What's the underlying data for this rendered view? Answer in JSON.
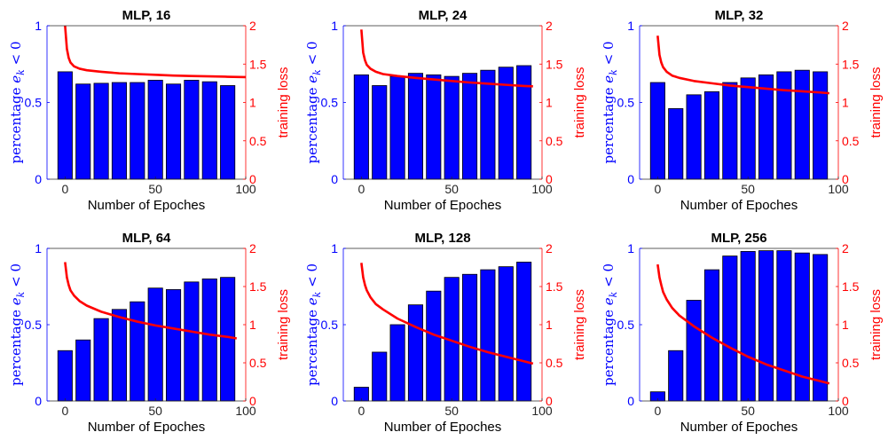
{
  "chart_data": [
    {
      "type": "bar",
      "title": "MLP, 16",
      "xlabel": "Number of Epoches",
      "ylabel_left": {
        "prefix": "percentage ",
        "var": "e",
        "sub": "k",
        "rel": " < 0"
      },
      "ylabel_right": "training loss",
      "xlim": [
        -10,
        100
      ],
      "xticks": [
        0,
        50,
        100
      ],
      "ylim_left": [
        0,
        1
      ],
      "yticks_left": [
        0,
        0.5,
        1
      ],
      "ylim_right": [
        0,
        2
      ],
      "yticks_right": [
        0,
        0.5,
        1,
        1.5,
        2
      ],
      "categories": [
        0,
        10,
        20,
        30,
        40,
        50,
        60,
        70,
        80,
        90
      ],
      "values": [
        0.7,
        0.62,
        0.625,
        0.63,
        0.63,
        0.645,
        0.62,
        0.645,
        0.635,
        0.61
      ],
      "line": {
        "x": [
          0,
          1,
          2,
          3,
          5,
          8,
          12,
          20,
          30,
          40,
          50,
          60,
          70,
          80,
          90,
          100
        ],
        "y": [
          2.0,
          1.7,
          1.58,
          1.52,
          1.47,
          1.44,
          1.42,
          1.4,
          1.38,
          1.37,
          1.36,
          1.35,
          1.345,
          1.34,
          1.335,
          1.33
        ]
      }
    },
    {
      "type": "bar",
      "title": "MLP, 24",
      "xlabel": "Number of Epoches",
      "ylabel_left": {
        "prefix": "percentage ",
        "var": "e",
        "sub": "k",
        "rel": " < 0"
      },
      "ylabel_right": "training loss",
      "xlim": [
        -10,
        100
      ],
      "xticks": [
        0,
        50,
        100
      ],
      "ylim_left": [
        0,
        1
      ],
      "yticks_left": [
        0,
        0.5,
        1
      ],
      "ylim_right": [
        0,
        2
      ],
      "yticks_right": [
        0,
        0.5,
        1,
        1.5,
        2
      ],
      "categories": [
        0,
        10,
        20,
        30,
        40,
        50,
        60,
        70,
        80,
        90
      ],
      "values": [
        0.68,
        0.61,
        0.67,
        0.69,
        0.68,
        0.67,
        0.69,
        0.71,
        0.73,
        0.74
      ],
      "line": {
        "x": [
          0,
          1,
          2,
          3,
          5,
          8,
          12,
          20,
          30,
          40,
          50,
          60,
          70,
          80,
          90,
          95
        ],
        "y": [
          1.95,
          1.65,
          1.55,
          1.49,
          1.44,
          1.4,
          1.37,
          1.345,
          1.32,
          1.3,
          1.28,
          1.26,
          1.245,
          1.23,
          1.215,
          1.21
        ]
      }
    },
    {
      "type": "bar",
      "title": "MLP, 32",
      "xlabel": "Number of Epoches",
      "ylabel_left": {
        "prefix": "percentage ",
        "var": "e",
        "sub": "k",
        "rel": " < 0"
      },
      "ylabel_right": "training loss",
      "xlim": [
        -10,
        100
      ],
      "xticks": [
        0,
        50,
        100
      ],
      "ylim_left": [
        0,
        1
      ],
      "yticks_left": [
        0,
        0.5,
        1
      ],
      "ylim_right": [
        0,
        2
      ],
      "yticks_right": [
        0,
        0.5,
        1,
        1.5,
        2
      ],
      "categories": [
        0,
        10,
        20,
        30,
        40,
        50,
        60,
        70,
        80,
        90
      ],
      "values": [
        0.63,
        0.46,
        0.55,
        0.57,
        0.63,
        0.66,
        0.68,
        0.7,
        0.71,
        0.7
      ],
      "line": {
        "x": [
          0,
          1,
          2,
          3,
          5,
          8,
          12,
          20,
          30,
          40,
          50,
          60,
          70,
          80,
          90,
          95
        ],
        "y": [
          1.87,
          1.62,
          1.52,
          1.46,
          1.4,
          1.35,
          1.32,
          1.28,
          1.25,
          1.22,
          1.2,
          1.18,
          1.16,
          1.145,
          1.13,
          1.12
        ]
      }
    },
    {
      "type": "bar",
      "title": "MLP, 64",
      "xlabel": "Number of Epoches",
      "ylabel_left": {
        "prefix": "percentage ",
        "var": "e",
        "sub": "k",
        "rel": " < 0"
      },
      "ylabel_right": "training loss",
      "xlim": [
        -10,
        100
      ],
      "xticks": [
        0,
        50,
        100
      ],
      "ylim_left": [
        0,
        1
      ],
      "yticks_left": [
        0,
        0.5,
        1
      ],
      "ylim_right": [
        0,
        2
      ],
      "yticks_right": [
        0,
        0.5,
        1,
        1.5,
        2
      ],
      "categories": [
        0,
        10,
        20,
        30,
        40,
        50,
        60,
        70,
        80,
        90
      ],
      "values": [
        0.33,
        0.4,
        0.54,
        0.6,
        0.65,
        0.74,
        0.73,
        0.78,
        0.8,
        0.81
      ],
      "line": {
        "x": [
          0,
          1,
          2,
          3,
          5,
          8,
          12,
          20,
          30,
          40,
          50,
          60,
          70,
          80,
          90,
          95
        ],
        "y": [
          1.82,
          1.62,
          1.52,
          1.45,
          1.38,
          1.31,
          1.25,
          1.17,
          1.1,
          1.04,
          0.99,
          0.95,
          0.91,
          0.87,
          0.84,
          0.82
        ]
      }
    },
    {
      "type": "bar",
      "title": "MLP, 128",
      "xlabel": "Number of Epoches",
      "ylabel_left": {
        "prefix": "percentage ",
        "var": "e",
        "sub": "k",
        "rel": " < 0"
      },
      "ylabel_right": "training loss",
      "xlim": [
        -10,
        100
      ],
      "xticks": [
        0,
        50,
        100
      ],
      "ylim_left": [
        0,
        1
      ],
      "yticks_left": [
        0,
        0.5,
        1
      ],
      "ylim_right": [
        0,
        2
      ],
      "yticks_right": [
        0,
        0.5,
        1,
        1.5,
        2
      ],
      "categories": [
        0,
        10,
        20,
        30,
        40,
        50,
        60,
        70,
        80,
        90
      ],
      "values": [
        0.09,
        0.32,
        0.5,
        0.63,
        0.72,
        0.81,
        0.83,
        0.86,
        0.88,
        0.91
      ],
      "line": {
        "x": [
          0,
          1,
          2,
          3,
          5,
          8,
          12,
          20,
          30,
          40,
          50,
          60,
          70,
          80,
          90,
          95
        ],
        "y": [
          1.81,
          1.62,
          1.52,
          1.45,
          1.36,
          1.27,
          1.2,
          1.08,
          0.97,
          0.87,
          0.79,
          0.71,
          0.64,
          0.58,
          0.52,
          0.49
        ]
      }
    },
    {
      "type": "bar",
      "title": "MLP, 256",
      "xlabel": "Number of Epoches",
      "ylabel_left": {
        "prefix": "percentage ",
        "var": "e",
        "sub": "k",
        "rel": " < 0"
      },
      "ylabel_right": "training loss",
      "xlim": [
        -10,
        100
      ],
      "xticks": [
        0,
        50,
        100
      ],
      "ylim_left": [
        0,
        1
      ],
      "yticks_left": [
        0,
        0.5,
        1
      ],
      "ylim_right": [
        0,
        2
      ],
      "yticks_right": [
        0,
        0.5,
        1,
        1.5,
        2
      ],
      "categories": [
        0,
        10,
        20,
        30,
        40,
        50,
        60,
        70,
        80,
        90
      ],
      "values": [
        0.06,
        0.33,
        0.66,
        0.86,
        0.95,
        0.98,
        0.985,
        0.985,
        0.97,
        0.96
      ],
      "line": {
        "x": [
          0,
          1,
          2,
          3,
          5,
          8,
          12,
          20,
          30,
          40,
          50,
          60,
          70,
          80,
          90,
          95
        ],
        "y": [
          1.79,
          1.62,
          1.52,
          1.43,
          1.33,
          1.22,
          1.12,
          0.98,
          0.83,
          0.7,
          0.58,
          0.48,
          0.4,
          0.32,
          0.26,
          0.23
        ]
      }
    }
  ],
  "colors": {
    "bar": "#0000ff",
    "line": "#ff0000",
    "left_axis": "#0000ff",
    "right_axis": "#ff0000"
  }
}
